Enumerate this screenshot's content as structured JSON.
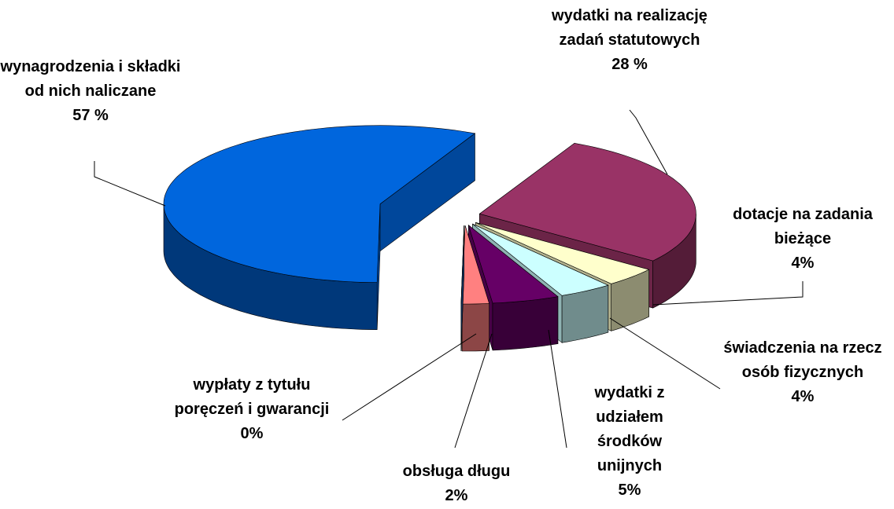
{
  "chart_data": {
    "type": "pie",
    "categories": [
      "wydatki na realizację zadań statutowych",
      "dotacje na zadania bieżące",
      "świadczenia na rzecz osób fizycznych",
      "wydatki z udziałem środków unijnych",
      "obsługa długu",
      "wypłaty z tytułu poręczeń i gwarancji",
      "wynagrodzenia i składki od nich naliczane"
    ],
    "values": [
      28,
      4,
      4,
      5,
      2,
      0,
      57
    ],
    "value_labels": [
      "28 %",
      "4%",
      "4%",
      "5%",
      "2%",
      "0%",
      "57 %"
    ],
    "colors": [
      "#993366",
      "#ffffcc",
      "#ccffff",
      "#660066",
      "#ff8080",
      "#1a4a8a",
      "#0066dd"
    ]
  }
}
